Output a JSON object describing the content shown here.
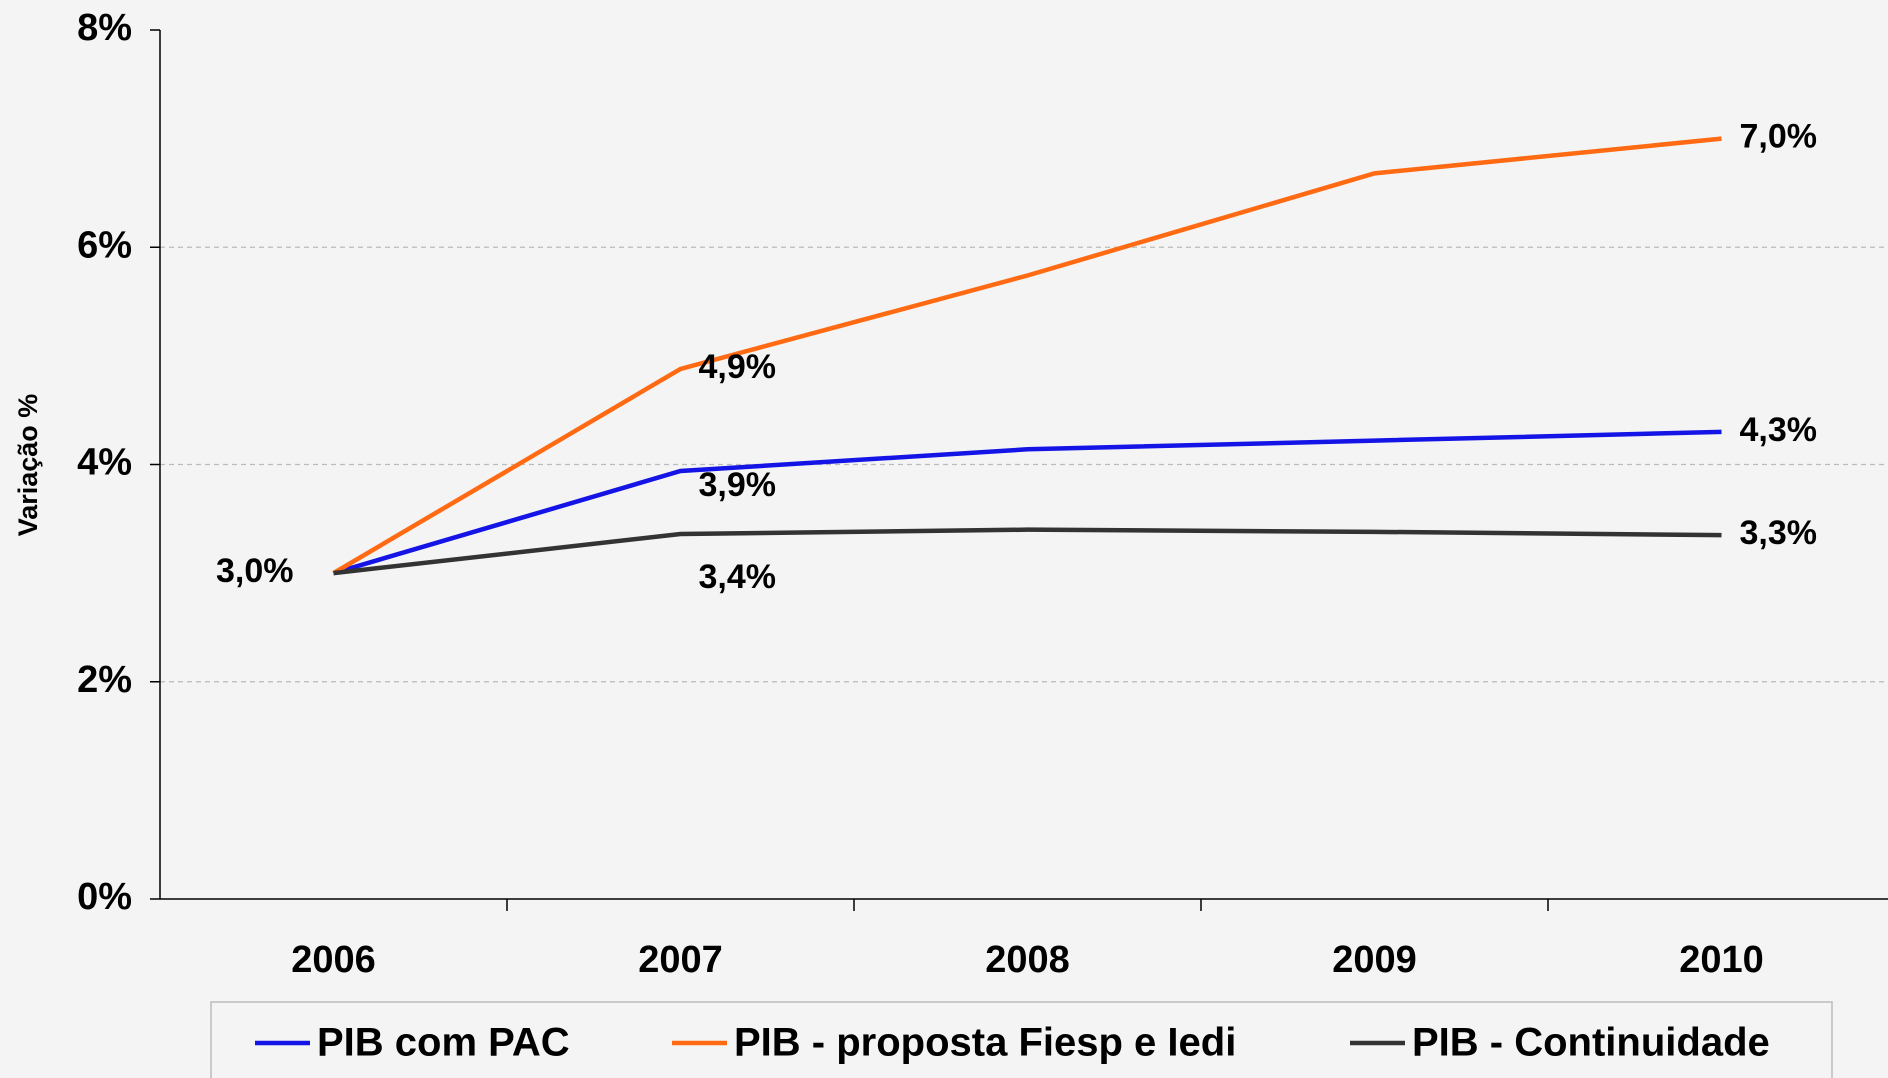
{
  "chart_data": {
    "type": "line",
    "y_label": "Variação %",
    "categories": [
      "2006",
      "2007",
      "2008",
      "2009",
      "2010"
    ],
    "series": [
      {
        "name": "PIB com PAC",
        "color": "#1414e6",
        "values": [
          3.0,
          3.94,
          4.14,
          4.22,
          4.3
        ],
        "value_labels": [
          "3,0%",
          "3,9%",
          null,
          null,
          "4,3%"
        ]
      },
      {
        "name": "PIB - proposta Fiesp e Iedi",
        "color": "#ff6a13",
        "values": [
          3.0,
          4.88,
          5.74,
          6.68,
          7.0
        ],
        "value_labels": [
          null,
          "4,9%",
          null,
          null,
          "7,0%"
        ]
      },
      {
        "name": "PIB - Continuidade",
        "color": "#333333",
        "values": [
          3.0,
          3.36,
          3.4,
          3.38,
          3.35
        ],
        "value_labels": [
          null,
          "3,4%",
          null,
          null,
          "3,3%"
        ]
      }
    ],
    "ylim": [
      0,
      8
    ],
    "yticks": [
      {
        "value": 0,
        "label": "0%"
      },
      {
        "value": 2,
        "label": "2%"
      },
      {
        "value": 4,
        "label": "4%"
      },
      {
        "value": 6,
        "label": "6%"
      },
      {
        "value": 8,
        "label": "8%"
      }
    ],
    "grid": true,
    "legend": "bottom"
  }
}
